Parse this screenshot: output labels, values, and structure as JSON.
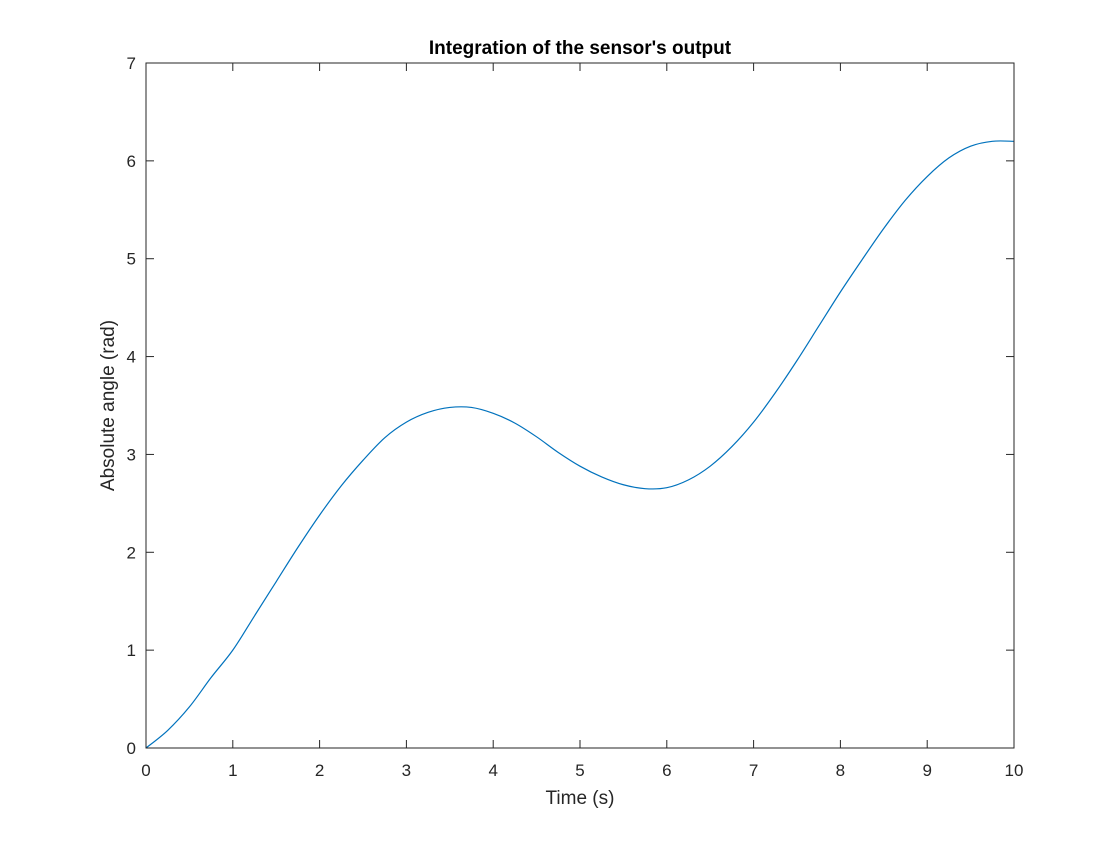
{
  "chart_data": {
    "type": "line",
    "title": "Integration of the sensor's output",
    "xlabel": "Time (s)",
    "ylabel": "Absolute angle (rad)",
    "xlim": [
      0,
      10
    ],
    "ylim": [
      0,
      7
    ],
    "xticks": [
      "0",
      "1",
      "2",
      "3",
      "4",
      "5",
      "6",
      "7",
      "8",
      "9",
      "10"
    ],
    "yticks": [
      "0",
      "1",
      "2",
      "3",
      "4",
      "5",
      "6",
      "7"
    ],
    "grid": false,
    "box": true,
    "series": [
      {
        "color": "#0072BD",
        "x": [
          0,
          0.25,
          0.5,
          0.75,
          1.0,
          1.25,
          1.5,
          1.75,
          2.0,
          2.25,
          2.5,
          2.75,
          3.0,
          3.25,
          3.5,
          3.75,
          4.0,
          4.25,
          4.5,
          4.75,
          5.0,
          5.25,
          5.5,
          5.75,
          6.0,
          6.25,
          6.5,
          6.75,
          7.0,
          7.25,
          7.5,
          7.75,
          8.0,
          8.25,
          8.5,
          8.75,
          9.0,
          9.25,
          9.5,
          9.75,
          10.0
        ],
        "y": [
          0.0,
          0.18,
          0.42,
          0.72,
          1.0,
          1.35,
          1.7,
          2.05,
          2.38,
          2.68,
          2.94,
          3.17,
          3.33,
          3.43,
          3.48,
          3.48,
          3.42,
          3.32,
          3.18,
          3.02,
          2.88,
          2.77,
          2.69,
          2.65,
          2.66,
          2.74,
          2.88,
          3.08,
          3.33,
          3.63,
          3.96,
          4.31,
          4.66,
          4.99,
          5.31,
          5.6,
          5.84,
          6.03,
          6.15,
          6.2,
          6.2
        ]
      }
    ]
  }
}
